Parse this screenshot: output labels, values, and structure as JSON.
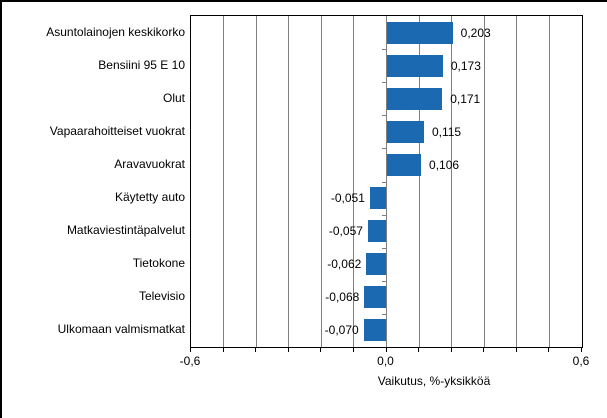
{
  "chart_data": {
    "type": "bar",
    "orientation": "horizontal",
    "title": "",
    "xlabel": "Vaikutus, %-yksikköä",
    "xlim": [
      -0.6,
      0.6
    ],
    "gridline_interval": 0.1,
    "grid": true,
    "categories": [
      "Asuntolainojen keskikorko",
      "Bensiini 95 E  10",
      "Olut",
      "Vapaarahoitteiset vuokrat",
      "Aravavuokrat",
      "Käytetty auto",
      "Matkaviestintäpalvelut",
      "Tietokone",
      "Televisio",
      "Ulkomaan valmismatkat"
    ],
    "values": [
      0.203,
      0.173,
      0.171,
      0.115,
      0.106,
      -0.051,
      -0.057,
      -0.062,
      -0.068,
      -0.07
    ],
    "value_labels": [
      "0,203",
      "0,173",
      "0,171",
      "0,115",
      "0,106",
      "-0,051",
      "-0,057",
      "-0,062",
      "-0,068",
      "-0,070"
    ],
    "x_ticks": [
      {
        "value": -0.6,
        "label": "-0,6"
      },
      {
        "value": 0.0,
        "label": "0,0"
      },
      {
        "value": 0.6,
        "label": "0,6"
      }
    ],
    "colors": {
      "bar": "#1b69b0",
      "gridline": "#808080",
      "frame": "#000000",
      "text": "#000000",
      "background": "#ffffff"
    }
  }
}
